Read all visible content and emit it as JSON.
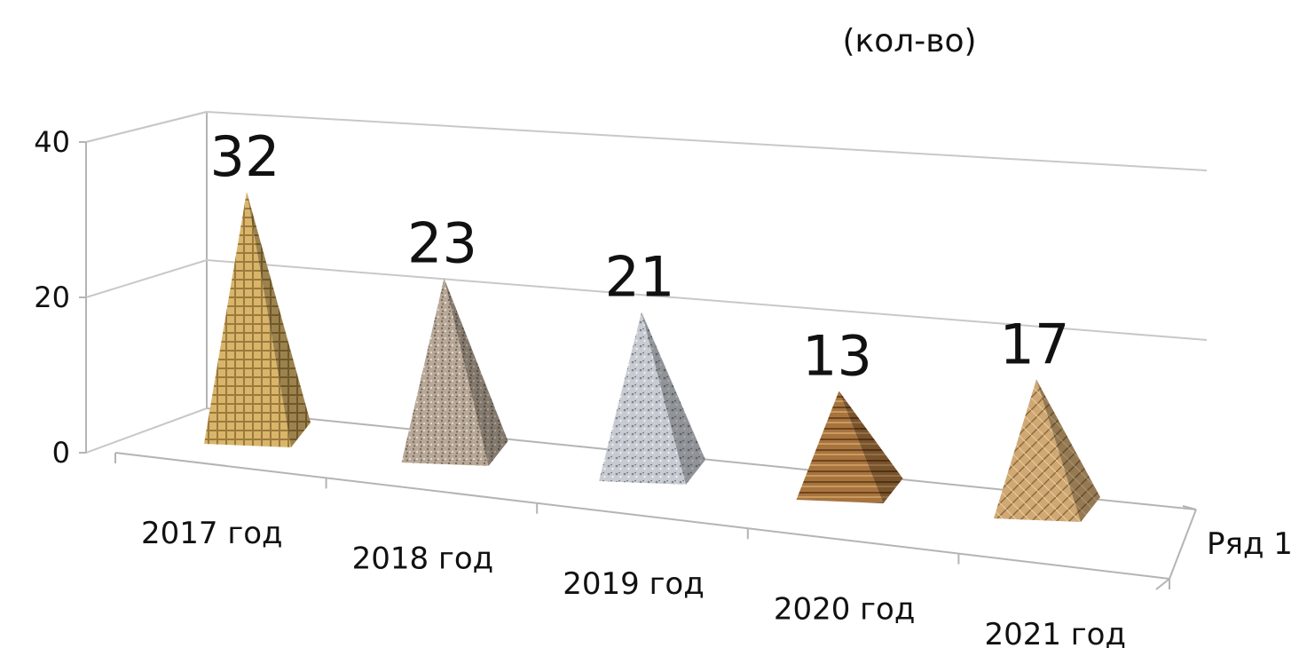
{
  "chart_data": {
    "type": "bar",
    "subtype": "3d-pyramid",
    "title": "(кол-во)",
    "categories": [
      "2017 год",
      "2018 год",
      "2019 год",
      "2020 год",
      "2021 год"
    ],
    "series": [
      {
        "name": "Ряд 1",
        "values": [
          32,
          23,
          21,
          13,
          17
        ]
      }
    ],
    "data_labels": [
      "32",
      "23",
      "21",
      "13",
      "17"
    ],
    "y_ticks": [
      "0",
      "20",
      "40"
    ],
    "ylim": [
      0,
      40
    ],
    "grid": true,
    "legend": "none",
    "colors": [
      "#c9a560",
      "#a89888",
      "#b8bcc4",
      "#9a6a3a",
      "#c09a66"
    ]
  }
}
